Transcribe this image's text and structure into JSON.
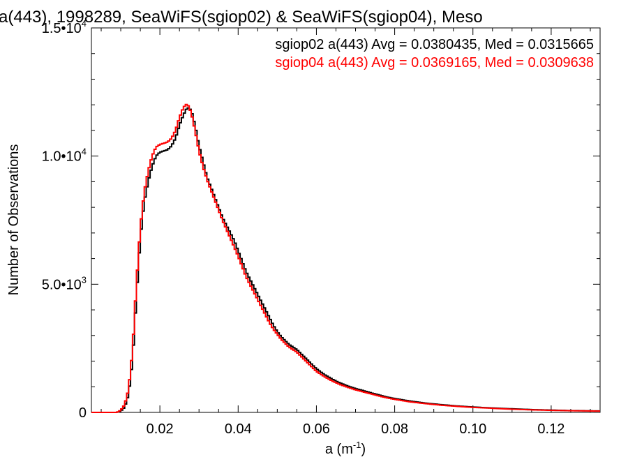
{
  "chart_data": {
    "type": "line",
    "title": "a(443), 1998289, SeaWiFS(sgiop02) & SeaWiFS(sgiop04), Meso",
    "xlabel": "a (m",
    "xlabel_sup": "-1",
    "xlabel_close": ")",
    "ylabel": "Number of Observations",
    "xlim": [
      0.0025,
      0.1325
    ],
    "ylim": [
      0,
      15000
    ],
    "x_ticks": [
      {
        "value": 0.02,
        "label": "0.02"
      },
      {
        "value": 0.04,
        "label": "0.04"
      },
      {
        "value": 0.06,
        "label": "0.06"
      },
      {
        "value": 0.08,
        "label": "0.08"
      },
      {
        "value": 0.1,
        "label": "0.10"
      },
      {
        "value": 0.12,
        "label": "0.12"
      }
    ],
    "y_ticks": [
      {
        "value": 0,
        "mant": "0",
        "exp": ""
      },
      {
        "value": 5000,
        "mant": "5.0•10",
        "exp": "3"
      },
      {
        "value": 10000,
        "mant": "1.0•10",
        "exp": "4"
      },
      {
        "value": 15000,
        "mant": "1.5•10",
        "exp": "4"
      }
    ],
    "series": [
      {
        "label": "sgiop02 a(443) Avg = 0.0380435, Med = 0.0315665",
        "color": "#000000",
        "points": [
          [
            0.003,
            0
          ],
          [
            0.009,
            0
          ],
          [
            0.01,
            50
          ],
          [
            0.011,
            200
          ],
          [
            0.012,
            700
          ],
          [
            0.013,
            2000
          ],
          [
            0.014,
            4500
          ],
          [
            0.015,
            6800
          ],
          [
            0.016,
            8200
          ],
          [
            0.017,
            9000
          ],
          [
            0.018,
            9600
          ],
          [
            0.019,
            10000
          ],
          [
            0.02,
            10150
          ],
          [
            0.021,
            10200
          ],
          [
            0.022,
            10250
          ],
          [
            0.023,
            10400
          ],
          [
            0.024,
            10700
          ],
          [
            0.025,
            11200
          ],
          [
            0.026,
            11600
          ],
          [
            0.027,
            11900
          ],
          [
            0.028,
            11800
          ],
          [
            0.029,
            11200
          ],
          [
            0.03,
            10400
          ],
          [
            0.031,
            9800
          ],
          [
            0.032,
            9200
          ],
          [
            0.033,
            8800
          ],
          [
            0.034,
            8400
          ],
          [
            0.035,
            8000
          ],
          [
            0.036,
            7600
          ],
          [
            0.037,
            7300
          ],
          [
            0.038,
            7000
          ],
          [
            0.039,
            6700
          ],
          [
            0.04,
            6300
          ],
          [
            0.041,
            5900
          ],
          [
            0.042,
            5500
          ],
          [
            0.043,
            5200
          ],
          [
            0.044,
            4900
          ],
          [
            0.045,
            4600
          ],
          [
            0.046,
            4300
          ],
          [
            0.047,
            4000
          ],
          [
            0.048,
            3700
          ],
          [
            0.049,
            3400
          ],
          [
            0.05,
            3150
          ],
          [
            0.051,
            2950
          ],
          [
            0.052,
            2800
          ],
          [
            0.053,
            2650
          ],
          [
            0.054,
            2550
          ],
          [
            0.055,
            2450
          ],
          [
            0.056,
            2300
          ],
          [
            0.057,
            2150
          ],
          [
            0.058,
            2000
          ],
          [
            0.059,
            1850
          ],
          [
            0.06,
            1700
          ],
          [
            0.062,
            1480
          ],
          [
            0.064,
            1300
          ],
          [
            0.066,
            1150
          ],
          [
            0.068,
            1030
          ],
          [
            0.07,
            930
          ],
          [
            0.072,
            850
          ],
          [
            0.074,
            760
          ],
          [
            0.076,
            680
          ],
          [
            0.078,
            600
          ],
          [
            0.08,
            540
          ],
          [
            0.084,
            440
          ],
          [
            0.088,
            360
          ],
          [
            0.092,
            300
          ],
          [
            0.096,
            250
          ],
          [
            0.1,
            210
          ],
          [
            0.105,
            170
          ],
          [
            0.11,
            140
          ],
          [
            0.115,
            110
          ],
          [
            0.12,
            90
          ],
          [
            0.125,
            70
          ],
          [
            0.13,
            60
          ],
          [
            0.1325,
            55
          ]
        ]
      },
      {
        "label": "sgiop04 a(443) Avg = 0.0369165, Med = 0.0309638",
        "color": "#ff0000",
        "points": [
          [
            0.003,
            0
          ],
          [
            0.009,
            0
          ],
          [
            0.01,
            80
          ],
          [
            0.011,
            300
          ],
          [
            0.012,
            900
          ],
          [
            0.013,
            2400
          ],
          [
            0.014,
            5000
          ],
          [
            0.015,
            7200
          ],
          [
            0.016,
            8600
          ],
          [
            0.017,
            9400
          ],
          [
            0.018,
            10000
          ],
          [
            0.019,
            10350
          ],
          [
            0.02,
            10450
          ],
          [
            0.021,
            10500
          ],
          [
            0.022,
            10550
          ],
          [
            0.023,
            10700
          ],
          [
            0.024,
            11000
          ],
          [
            0.025,
            11500
          ],
          [
            0.026,
            11900
          ],
          [
            0.027,
            12050
          ],
          [
            0.028,
            11700
          ],
          [
            0.029,
            11000
          ],
          [
            0.03,
            10200
          ],
          [
            0.031,
            9600
          ],
          [
            0.032,
            9100
          ],
          [
            0.033,
            8700
          ],
          [
            0.034,
            8300
          ],
          [
            0.035,
            7900
          ],
          [
            0.036,
            7500
          ],
          [
            0.037,
            7150
          ],
          [
            0.038,
            6800
          ],
          [
            0.039,
            6450
          ],
          [
            0.04,
            6100
          ],
          [
            0.041,
            5700
          ],
          [
            0.042,
            5300
          ],
          [
            0.043,
            5000
          ],
          [
            0.044,
            4700
          ],
          [
            0.045,
            4400
          ],
          [
            0.046,
            4100
          ],
          [
            0.047,
            3800
          ],
          [
            0.048,
            3500
          ],
          [
            0.049,
            3250
          ],
          [
            0.05,
            3050
          ],
          [
            0.051,
            2850
          ],
          [
            0.052,
            2700
          ],
          [
            0.053,
            2550
          ],
          [
            0.054,
            2450
          ],
          [
            0.055,
            2350
          ],
          [
            0.056,
            2200
          ],
          [
            0.057,
            2050
          ],
          [
            0.058,
            1900
          ],
          [
            0.059,
            1750
          ],
          [
            0.06,
            1600
          ],
          [
            0.062,
            1400
          ],
          [
            0.064,
            1230
          ],
          [
            0.066,
            1090
          ],
          [
            0.068,
            980
          ],
          [
            0.07,
            880
          ],
          [
            0.072,
            800
          ],
          [
            0.074,
            720
          ],
          [
            0.076,
            640
          ],
          [
            0.078,
            570
          ],
          [
            0.08,
            510
          ],
          [
            0.084,
            410
          ],
          [
            0.088,
            340
          ],
          [
            0.092,
            280
          ],
          [
            0.096,
            235
          ],
          [
            0.1,
            195
          ],
          [
            0.105,
            160
          ],
          [
            0.11,
            125
          ],
          [
            0.115,
            100
          ],
          [
            0.12,
            80
          ],
          [
            0.125,
            65
          ],
          [
            0.13,
            55
          ],
          [
            0.1325,
            50
          ]
        ]
      }
    ],
    "legend_position": "top-right",
    "grid": false
  }
}
